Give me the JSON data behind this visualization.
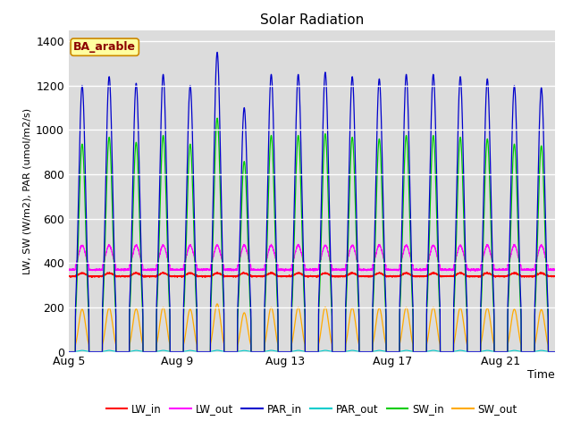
{
  "title": "Solar Radiation",
  "ylabel": "LW, SW (W/m2), PAR (umol/m2/s)",
  "xlabel": "Time",
  "annotation_label": "BA_arable",
  "ylim": [
    0,
    1450
  ],
  "yticks": [
    0,
    200,
    400,
    600,
    800,
    1000,
    1200,
    1400
  ],
  "xtick_labels": [
    "Aug 5",
    "Aug 9",
    "Aug 13",
    "Aug 17",
    "Aug 21"
  ],
  "xtick_pos": [
    0,
    4,
    8,
    12,
    16
  ],
  "colors": {
    "LW_in": "#ff0000",
    "LW_out": "#ff00ff",
    "PAR_in": "#0000cc",
    "PAR_out": "#00cccc",
    "SW_in": "#00cc00",
    "SW_out": "#ffaa00"
  },
  "plot_bg": "#dcdcdc",
  "n_days": 18,
  "pts_per_day": 288
}
